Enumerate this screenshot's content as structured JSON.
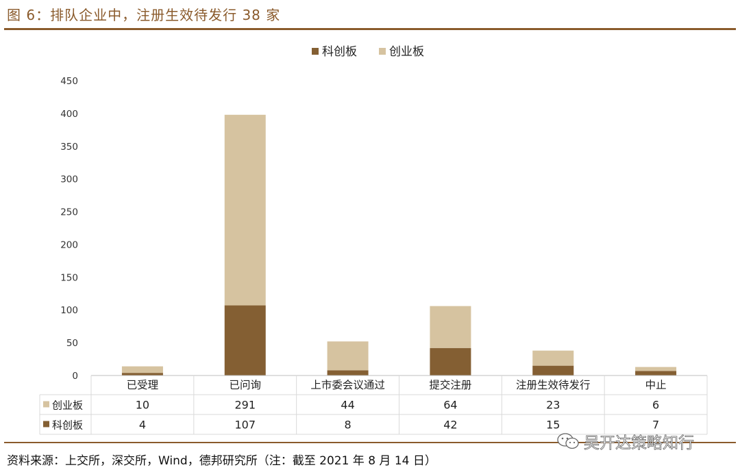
{
  "figure": {
    "title": "图 6：排队企业中，注册生效待发行 38 家",
    "source": "资料来源：上交所，深交所，Wind，德邦研究所（注：截至 2021 年 8 月 14 日）",
    "watermark": "吴开达策略知行"
  },
  "colors": {
    "kechuang": "#845f33",
    "chuangye": "#d6c3a0",
    "rule": "#8a5a2b",
    "grid": "#d9d9d9"
  },
  "chart_data": {
    "type": "bar",
    "stacked": true,
    "categories": [
      "已受理",
      "已问询",
      "上市委会议通过",
      "提交注册",
      "注册生效待发行",
      "中止"
    ],
    "series": [
      {
        "name": "科创板",
        "values": [
          4,
          107,
          8,
          42,
          15,
          7
        ]
      },
      {
        "name": "创业板",
        "values": [
          10,
          291,
          44,
          64,
          23,
          6
        ]
      }
    ],
    "ylim": [
      0,
      450
    ],
    "yticks": [
      0,
      50,
      100,
      150,
      200,
      250,
      300,
      350,
      400,
      450
    ],
    "legend_position": "top-center",
    "data_table": true,
    "grid": false
  }
}
